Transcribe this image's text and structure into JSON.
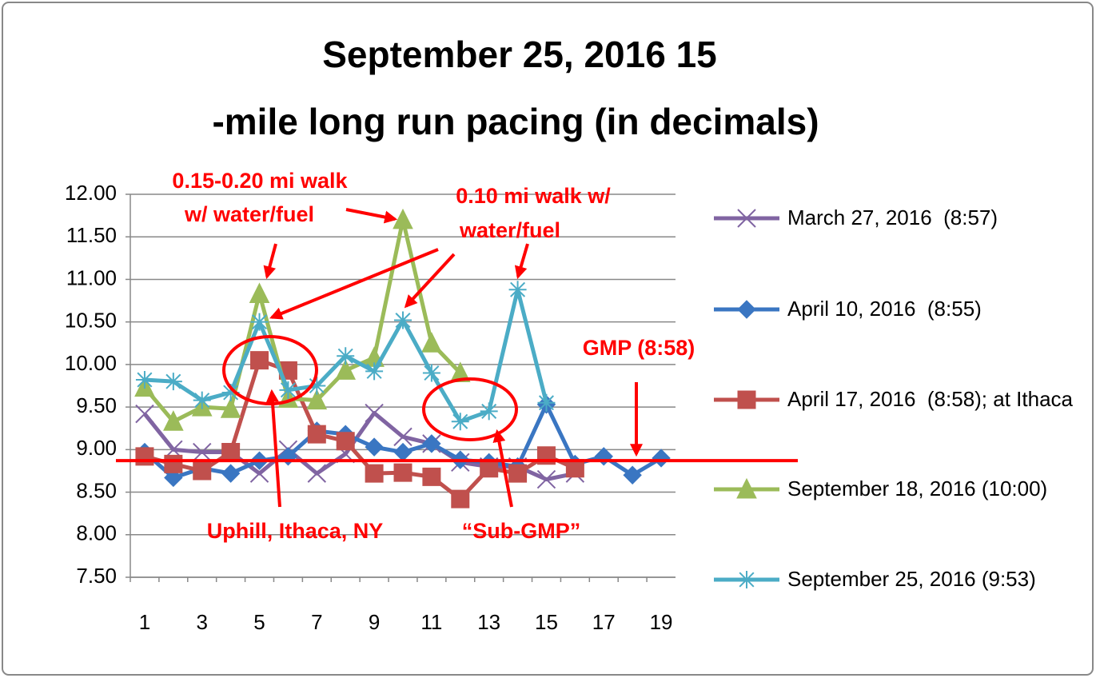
{
  "chart_data": {
    "type": "line",
    "title": [
      "September 25, 2016 15",
      "-mile long run pacing (in decimals)"
    ],
    "categories": [
      "1",
      null,
      "3",
      null,
      "5",
      null,
      "7",
      null,
      "9",
      null,
      "11",
      null,
      "13",
      null,
      "15",
      null,
      "17",
      null,
      "19"
    ],
    "ylim": [
      7.5,
      12
    ],
    "yticks": [
      {
        "value": 7.5,
        "label": "7.50"
      },
      {
        "value": 8,
        "label": "8.00"
      },
      {
        "value": 8.5,
        "label": "8.50"
      },
      {
        "value": 9,
        "label": "9.00"
      },
      {
        "value": 9.5,
        "label": "9.50"
      },
      {
        "value": 10,
        "label": "10.00"
      },
      {
        "value": 10.5,
        "label": "10.50"
      },
      {
        "value": 11,
        "label": "11.00"
      },
      {
        "value": 11.5,
        "label": "11.50"
      },
      {
        "value": 12,
        "label": "12.00"
      }
    ],
    "grid": true,
    "legend": "right",
    "series": [
      {
        "name": "March 27, 2016  (8:57)",
        "color": "#8064a2",
        "marker": "x",
        "values": [
          9.42,
          9.0,
          8.97,
          8.97,
          8.72,
          9.0,
          8.72,
          8.95,
          9.43,
          9.15,
          9.07,
          8.85,
          8.8,
          8.8,
          8.65,
          8.72,
          null,
          null,
          null
        ]
      },
      {
        "name": "April 10, 2016  (8:55)",
        "color": "#3a76c2",
        "marker": "diamond",
        "values": [
          8.97,
          8.67,
          8.78,
          8.72,
          8.87,
          8.92,
          9.22,
          9.18,
          9.03,
          8.97,
          9.07,
          8.88,
          8.85,
          8.8,
          9.53,
          8.83,
          8.92,
          8.7,
          8.9
        ]
      },
      {
        "name": "April 17, 2016  (8:58); at Ithaca",
        "color": "#c0504d",
        "marker": "square",
        "values": [
          8.92,
          8.83,
          8.75,
          8.97,
          10.05,
          9.93,
          9.18,
          9.1,
          8.72,
          8.73,
          8.68,
          8.42,
          8.78,
          8.72,
          8.93,
          8.78,
          null,
          null,
          null
        ]
      },
      {
        "name": "September 18, 2016 (10:00)",
        "color": "#9bbb59",
        "marker": "triangle",
        "values": [
          9.73,
          9.33,
          9.5,
          9.48,
          10.83,
          9.6,
          9.58,
          9.93,
          10.08,
          11.7,
          10.25,
          9.9,
          null,
          null,
          null,
          null,
          null,
          null,
          null
        ]
      },
      {
        "name": "September 25, 2016 (9:53)",
        "color": "#4bacc6",
        "marker": "star",
        "values": [
          9.82,
          9.8,
          9.58,
          9.67,
          10.5,
          9.7,
          9.75,
          10.1,
          9.92,
          10.52,
          9.9,
          9.33,
          9.45,
          10.88,
          9.55,
          null,
          null,
          null,
          null
        ]
      }
    ],
    "reference_line": 8.87,
    "annotations": [
      "0.15-0.20 mi walk",
      "w/ water/fuel",
      "0.10 mi walk w/",
      "water/fuel",
      "GMP (8:58)",
      "Uphill, Ithaca, NY",
      "“Sub-GMP”"
    ]
  }
}
